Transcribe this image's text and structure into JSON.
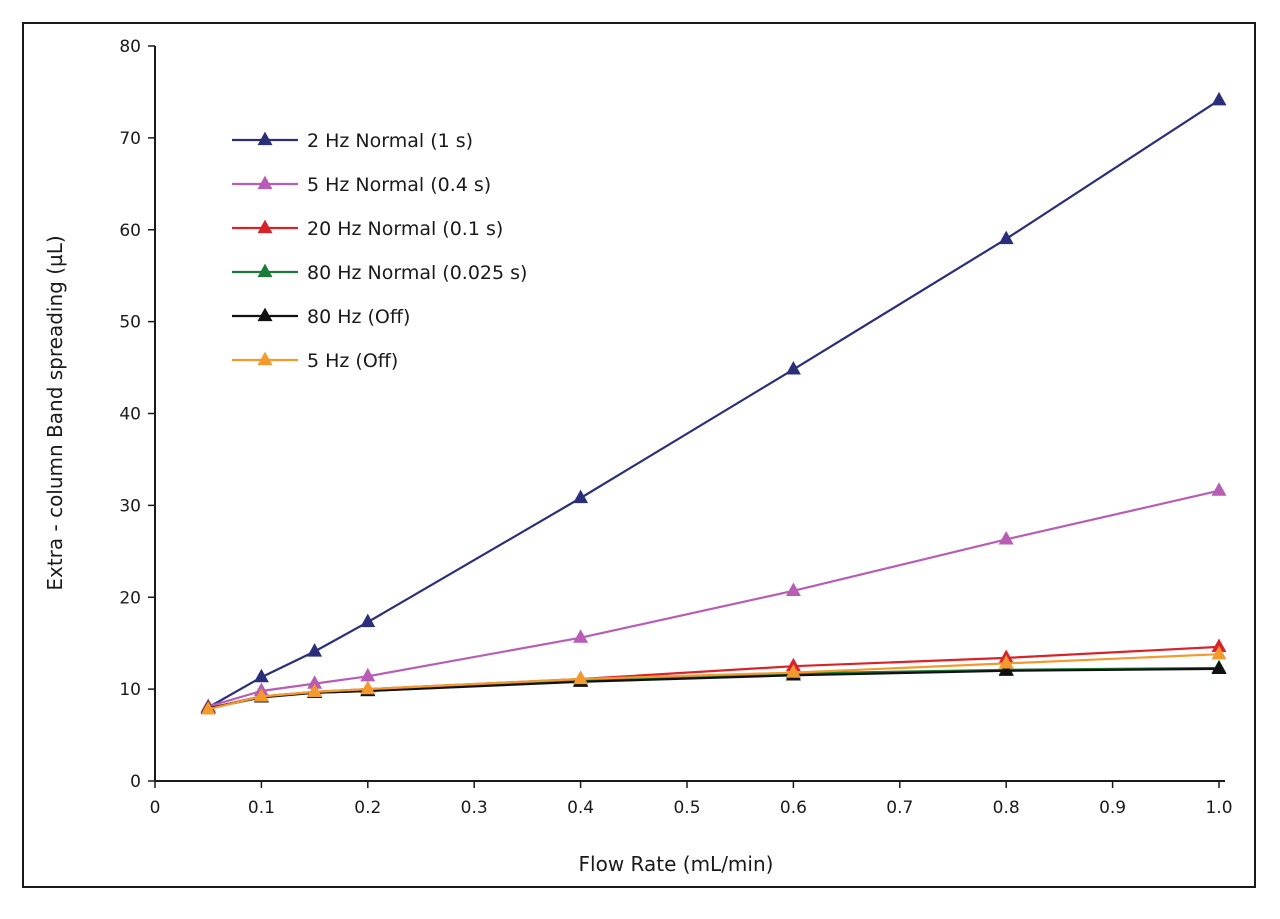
{
  "chart_data": {
    "type": "line",
    "title": "",
    "xlabel": "Flow Rate (mL/min)",
    "ylabel": "Extra - column Band spreading (µL)",
    "xlim": [
      0,
      1.0
    ],
    "ylim": [
      0,
      80
    ],
    "x_ticks": [
      "0",
      "0.1",
      "0.2",
      "0.3",
      "0.4",
      "0.5",
      "0.6",
      "0.7",
      "0.8",
      "0.9",
      "1.0"
    ],
    "y_ticks": [
      "0",
      "10",
      "20",
      "30",
      "40",
      "50",
      "60",
      "70",
      "80"
    ],
    "grid": false,
    "legend_position": "top-left",
    "marker": "triangle",
    "x": [
      0.05,
      0.1,
      0.15,
      0.2,
      0.4,
      0.6,
      0.8,
      1.0
    ],
    "series": [
      {
        "name": "2 Hz Normal (1 s)",
        "color": "#2b2f7a",
        "values": [
          8.0,
          11.3,
          14.1,
          17.3,
          30.8,
          44.8,
          59.0,
          74.1
        ]
      },
      {
        "name": "5 Hz Normal (0.4 s)",
        "color": "#b85db5",
        "values": [
          8.1,
          9.8,
          10.6,
          11.4,
          15.6,
          20.7,
          26.3,
          31.6
        ]
      },
      {
        "name": "20 Hz Normal (0.1 s)",
        "color": "#d9232b",
        "values": [
          7.9,
          9.2,
          9.7,
          10.0,
          11.1,
          12.5,
          13.4,
          14.6
        ]
      },
      {
        "name": "80 Hz Normal (0.025 s)",
        "color": "#1a7a3a",
        "values": [
          7.9,
          9.2,
          9.6,
          9.8,
          10.9,
          11.7,
          12.1,
          12.3
        ]
      },
      {
        "name": "80 Hz (Off)",
        "color": "#111111",
        "values": [
          7.9,
          9.1,
          9.6,
          9.8,
          10.8,
          11.5,
          12.0,
          12.2
        ]
      },
      {
        "name": "5 Hz (Off)",
        "color": "#f29a2e",
        "values": [
          7.8,
          9.2,
          9.7,
          10.0,
          11.1,
          11.8,
          12.8,
          13.8
        ]
      }
    ]
  }
}
